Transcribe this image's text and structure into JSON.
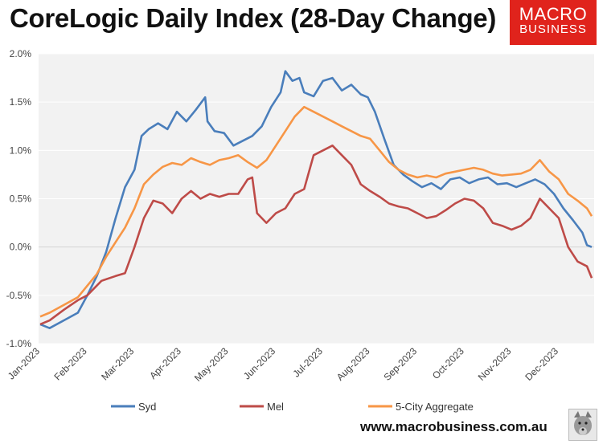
{
  "header": {
    "title": "CoreLogic Daily Index (28-Day Change)"
  },
  "logo": {
    "line1": "MACRO",
    "line2": "BUSINESS",
    "brand_color": "#e0231c"
  },
  "footer": {
    "url": "www.macrobusiness.com.au"
  },
  "icons": {
    "wolf": "wolf-mascot-icon"
  },
  "chart_data": {
    "type": "line",
    "title": "CoreLogic Daily Index (28-Day Change)",
    "xlabel": "",
    "ylabel": "",
    "ylim": [
      -1.0,
      2.0
    ],
    "yticks": [
      -1.0,
      -0.5,
      0.0,
      0.5,
      1.0,
      1.5,
      2.0
    ],
    "ytick_labels": [
      "-1.0%",
      "-0.5%",
      "0.0%",
      "0.5%",
      "1.0%",
      "1.5%",
      "2.0%"
    ],
    "x_categories": [
      "Jan-2023",
      "Feb-2023",
      "Mar-2023",
      "Apr-2023",
      "May-2023",
      "Jun-2023",
      "Jul-2023",
      "Aug-2023",
      "Sep-2023",
      "Oct-2023",
      "Nov-2023",
      "Dec-2023"
    ],
    "x_unit": "month index (0 = Jan-2023)",
    "xlim": [
      0,
      11.7
    ],
    "legend_position": "bottom",
    "series": [
      {
        "name": "Syd",
        "color": "#4a7ebb",
        "points": [
          [
            0,
            -0.8
          ],
          [
            0.2,
            -0.84
          ],
          [
            0.5,
            -0.76
          ],
          [
            0.8,
            -0.68
          ],
          [
            1.0,
            -0.5
          ],
          [
            1.2,
            -0.3
          ],
          [
            1.4,
            -0.05
          ],
          [
            1.6,
            0.3
          ],
          [
            1.8,
            0.62
          ],
          [
            2.0,
            0.8
          ],
          [
            2.15,
            1.15
          ],
          [
            2.3,
            1.22
          ],
          [
            2.5,
            1.28
          ],
          [
            2.7,
            1.22
          ],
          [
            2.9,
            1.4
          ],
          [
            3.1,
            1.3
          ],
          [
            3.3,
            1.42
          ],
          [
            3.5,
            1.55
          ],
          [
            3.55,
            1.3
          ],
          [
            3.7,
            1.2
          ],
          [
            3.9,
            1.18
          ],
          [
            4.1,
            1.05
          ],
          [
            4.3,
            1.1
          ],
          [
            4.5,
            1.15
          ],
          [
            4.7,
            1.25
          ],
          [
            4.9,
            1.45
          ],
          [
            5.1,
            1.6
          ],
          [
            5.2,
            1.82
          ],
          [
            5.35,
            1.72
          ],
          [
            5.5,
            1.75
          ],
          [
            5.6,
            1.6
          ],
          [
            5.8,
            1.56
          ],
          [
            6.0,
            1.72
          ],
          [
            6.2,
            1.75
          ],
          [
            6.4,
            1.62
          ],
          [
            6.6,
            1.68
          ],
          [
            6.8,
            1.58
          ],
          [
            6.95,
            1.55
          ],
          [
            7.1,
            1.4
          ],
          [
            7.3,
            1.12
          ],
          [
            7.5,
            0.85
          ],
          [
            7.7,
            0.75
          ],
          [
            7.9,
            0.68
          ],
          [
            8.1,
            0.62
          ],
          [
            8.3,
            0.66
          ],
          [
            8.5,
            0.6
          ],
          [
            8.7,
            0.7
          ],
          [
            8.9,
            0.72
          ],
          [
            9.1,
            0.66
          ],
          [
            9.3,
            0.7
          ],
          [
            9.5,
            0.72
          ],
          [
            9.7,
            0.65
          ],
          [
            9.9,
            0.66
          ],
          [
            10.1,
            0.62
          ],
          [
            10.3,
            0.66
          ],
          [
            10.5,
            0.7
          ],
          [
            10.7,
            0.65
          ],
          [
            10.9,
            0.55
          ],
          [
            11.1,
            0.4
          ],
          [
            11.3,
            0.28
          ],
          [
            11.5,
            0.15
          ],
          [
            11.6,
            0.02
          ],
          [
            11.7,
            0.0
          ]
        ]
      },
      {
        "name": "Mel",
        "color": "#be4b48",
        "points": [
          [
            0,
            -0.8
          ],
          [
            0.2,
            -0.76
          ],
          [
            0.5,
            -0.65
          ],
          [
            0.8,
            -0.55
          ],
          [
            1.0,
            -0.5
          ],
          [
            1.3,
            -0.35
          ],
          [
            1.6,
            -0.3
          ],
          [
            1.8,
            -0.27
          ],
          [
            2.0,
            0.0
          ],
          [
            2.2,
            0.3
          ],
          [
            2.4,
            0.48
          ],
          [
            2.6,
            0.45
          ],
          [
            2.8,
            0.35
          ],
          [
            3.0,
            0.5
          ],
          [
            3.2,
            0.58
          ],
          [
            3.4,
            0.5
          ],
          [
            3.6,
            0.55
          ],
          [
            3.8,
            0.52
          ],
          [
            4.0,
            0.55
          ],
          [
            4.2,
            0.55
          ],
          [
            4.4,
            0.7
          ],
          [
            4.5,
            0.72
          ],
          [
            4.6,
            0.35
          ],
          [
            4.8,
            0.25
          ],
          [
            5.0,
            0.35
          ],
          [
            5.2,
            0.4
          ],
          [
            5.4,
            0.55
          ],
          [
            5.6,
            0.6
          ],
          [
            5.8,
            0.95
          ],
          [
            6.0,
            1.0
          ],
          [
            6.2,
            1.05
          ],
          [
            6.4,
            0.95
          ],
          [
            6.6,
            0.85
          ],
          [
            6.8,
            0.65
          ],
          [
            7.0,
            0.58
          ],
          [
            7.2,
            0.52
          ],
          [
            7.4,
            0.45
          ],
          [
            7.6,
            0.42
          ],
          [
            7.8,
            0.4
          ],
          [
            8.0,
            0.35
          ],
          [
            8.2,
            0.3
          ],
          [
            8.4,
            0.32
          ],
          [
            8.6,
            0.38
          ],
          [
            8.8,
            0.45
          ],
          [
            9.0,
            0.5
          ],
          [
            9.2,
            0.48
          ],
          [
            9.4,
            0.4
          ],
          [
            9.6,
            0.25
          ],
          [
            9.8,
            0.22
          ],
          [
            10.0,
            0.18
          ],
          [
            10.2,
            0.22
          ],
          [
            10.4,
            0.3
          ],
          [
            10.6,
            0.5
          ],
          [
            10.8,
            0.4
          ],
          [
            11.0,
            0.3
          ],
          [
            11.2,
            0.0
          ],
          [
            11.4,
            -0.15
          ],
          [
            11.6,
            -0.2
          ],
          [
            11.7,
            -0.32
          ]
        ]
      },
      {
        "name": "5-City Aggregate",
        "color": "#f79646",
        "points": [
          [
            0,
            -0.72
          ],
          [
            0.2,
            -0.68
          ],
          [
            0.5,
            -0.6
          ],
          [
            0.8,
            -0.52
          ],
          [
            1.0,
            -0.4
          ],
          [
            1.2,
            -0.28
          ],
          [
            1.4,
            -0.1
          ],
          [
            1.6,
            0.05
          ],
          [
            1.8,
            0.2
          ],
          [
            2.0,
            0.4
          ],
          [
            2.2,
            0.65
          ],
          [
            2.4,
            0.75
          ],
          [
            2.6,
            0.83
          ],
          [
            2.8,
            0.87
          ],
          [
            3.0,
            0.85
          ],
          [
            3.2,
            0.92
          ],
          [
            3.4,
            0.88
          ],
          [
            3.6,
            0.85
          ],
          [
            3.8,
            0.9
          ],
          [
            4.0,
            0.92
          ],
          [
            4.2,
            0.95
          ],
          [
            4.4,
            0.88
          ],
          [
            4.6,
            0.82
          ],
          [
            4.8,
            0.9
          ],
          [
            5.0,
            1.05
          ],
          [
            5.2,
            1.2
          ],
          [
            5.4,
            1.35
          ],
          [
            5.6,
            1.45
          ],
          [
            5.8,
            1.4
          ],
          [
            6.0,
            1.35
          ],
          [
            6.2,
            1.3
          ],
          [
            6.4,
            1.25
          ],
          [
            6.6,
            1.2
          ],
          [
            6.8,
            1.15
          ],
          [
            7.0,
            1.12
          ],
          [
            7.2,
            1.0
          ],
          [
            7.4,
            0.88
          ],
          [
            7.6,
            0.8
          ],
          [
            7.8,
            0.75
          ],
          [
            8.0,
            0.72
          ],
          [
            8.2,
            0.74
          ],
          [
            8.4,
            0.72
          ],
          [
            8.6,
            0.76
          ],
          [
            8.8,
            0.78
          ],
          [
            9.0,
            0.8
          ],
          [
            9.2,
            0.82
          ],
          [
            9.4,
            0.8
          ],
          [
            9.6,
            0.76
          ],
          [
            9.8,
            0.74
          ],
          [
            10.0,
            0.75
          ],
          [
            10.2,
            0.76
          ],
          [
            10.4,
            0.8
          ],
          [
            10.6,
            0.9
          ],
          [
            10.8,
            0.78
          ],
          [
            11.0,
            0.7
          ],
          [
            11.2,
            0.55
          ],
          [
            11.4,
            0.48
          ],
          [
            11.6,
            0.4
          ],
          [
            11.7,
            0.32
          ]
        ]
      }
    ]
  }
}
